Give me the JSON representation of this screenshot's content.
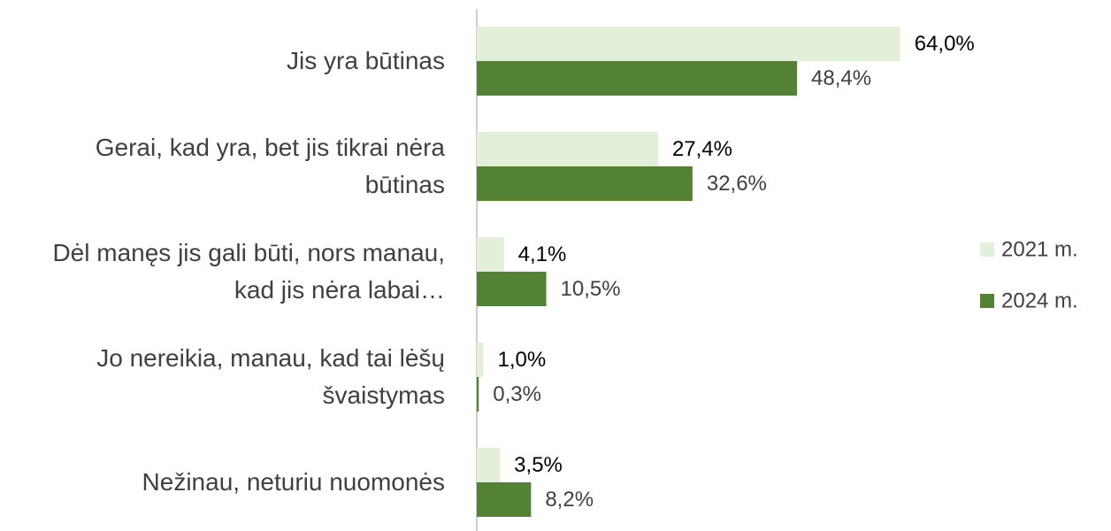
{
  "chart_data": {
    "type": "bar",
    "orientation": "horizontal",
    "categories": [
      "Jis yra būtinas",
      "Gerai, kad yra, bet jis tikrai nėra būtinas",
      "Dėl manęs jis gali būti, nors manau, kad jis nėra labai…",
      "Jo nereikia, manau, kad tai lėšų švaistymas",
      "Nežinau, neturiu nuomonės"
    ],
    "series": [
      {
        "name": "2021 m.",
        "color": "#e2efd9",
        "values": [
          64.0,
          27.4,
          4.1,
          1.0,
          3.5
        ],
        "value_labels": [
          "64,0%",
          "27,4%",
          "4,1%",
          "1,0%",
          "3,5%"
        ]
      },
      {
        "name": "2024 m.",
        "color": "#548235",
        "values": [
          48.4,
          32.6,
          10.5,
          0.3,
          8.2
        ],
        "value_labels": [
          "48,4%",
          "32,6%",
          "10,5%",
          "0,3%",
          "8,2%"
        ]
      }
    ],
    "legend": "right"
  }
}
